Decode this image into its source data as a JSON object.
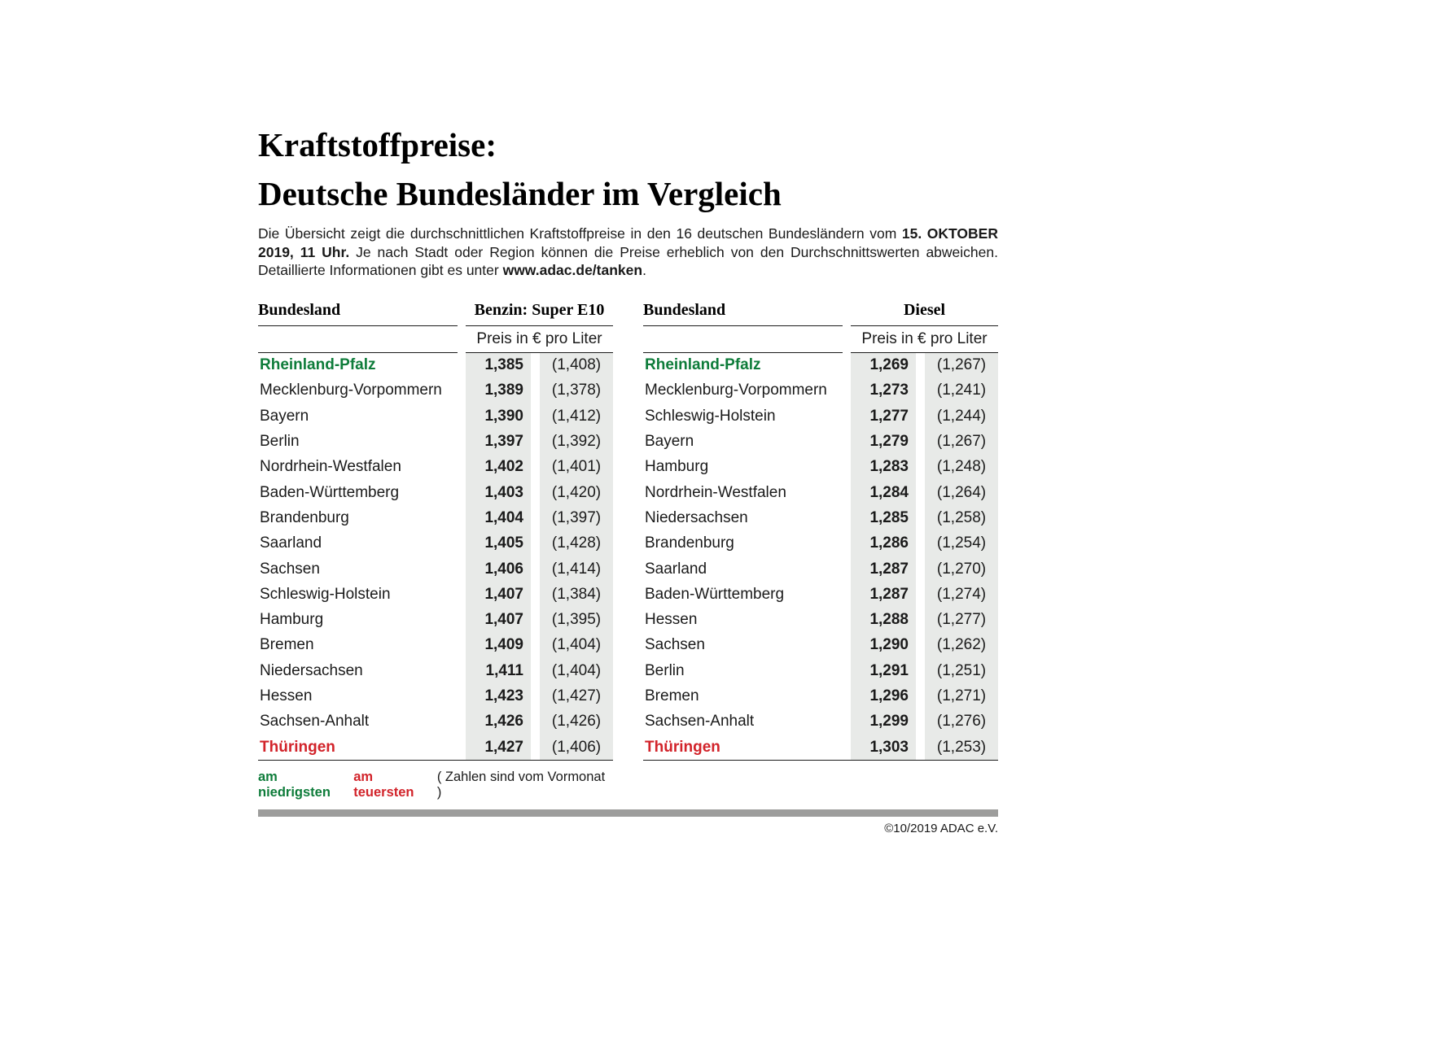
{
  "title": {
    "line1": "Kraftstoffpreise:",
    "line2": "Deutsche Bundesländer im Vergleich"
  },
  "intro": {
    "text1": "Die Übersicht zeigt die durchschnittlichen Kraftstoffpreise in den 16 deutschen Bundesländern vom ",
    "bold1": "15. OKTOBER 2019, 11 Uhr.",
    "text2": " Je nach Stadt oder Region können die Preise erheblich von den Durchschnittswerten abweichen. Detaillierte Informationen gibt es unter ",
    "bold2": "www.adac.de/tanken",
    "text3": "."
  },
  "chart_data": [
    {
      "type": "table",
      "name_header": "Bundesland",
      "fuel_header": "Benzin: Super E10",
      "price_header": "Preis in € pro Liter",
      "rows": [
        {
          "name": "Rheinland-Pfalz",
          "price": "1,385",
          "prev": "(1,408)",
          "highlight": "green"
        },
        {
          "name": "Mecklenburg-Vorpommern",
          "price": "1,389",
          "prev": "(1,378)",
          "highlight": null
        },
        {
          "name": "Bayern",
          "price": "1,390",
          "prev": "(1,412)",
          "highlight": null
        },
        {
          "name": "Berlin",
          "price": "1,397",
          "prev": "(1,392)",
          "highlight": null
        },
        {
          "name": "Nordrhein-Westfalen",
          "price": "1,402",
          "prev": "(1,401)",
          "highlight": null
        },
        {
          "name": "Baden-Württemberg",
          "price": "1,403",
          "prev": "(1,420)",
          "highlight": null
        },
        {
          "name": "Brandenburg",
          "price": "1,404",
          "prev": "(1,397)",
          "highlight": null
        },
        {
          "name": "Saarland",
          "price": "1,405",
          "prev": "(1,428)",
          "highlight": null
        },
        {
          "name": "Sachsen",
          "price": "1,406",
          "prev": "(1,414)",
          "highlight": null
        },
        {
          "name": "Schleswig-Holstein",
          "price": "1,407",
          "prev": "(1,384)",
          "highlight": null
        },
        {
          "name": "Hamburg",
          "price": "1,407",
          "prev": "(1,395)",
          "highlight": null
        },
        {
          "name": "Bremen",
          "price": "1,409",
          "prev": "(1,404)",
          "highlight": null
        },
        {
          "name": "Niedersachsen",
          "price": "1,411",
          "prev": "(1,404)",
          "highlight": null
        },
        {
          "name": "Hessen",
          "price": "1,423",
          "prev": "(1,427)",
          "highlight": null
        },
        {
          "name": "Sachsen-Anhalt",
          "price": "1,426",
          "prev": "(1,426)",
          "highlight": null
        },
        {
          "name": "Thüringen",
          "price": "1,427",
          "prev": "(1,406)",
          "highlight": "red"
        }
      ]
    },
    {
      "type": "table",
      "name_header": "Bundesland",
      "fuel_header": "Diesel",
      "price_header": "Preis in € pro Liter",
      "rows": [
        {
          "name": "Rheinland-Pfalz",
          "price": "1,269",
          "prev": "(1,267)",
          "highlight": "green"
        },
        {
          "name": "Mecklenburg-Vorpommern",
          "price": "1,273",
          "prev": "(1,241)",
          "highlight": null
        },
        {
          "name": "Schleswig-Holstein",
          "price": "1,277",
          "prev": "(1,244)",
          "highlight": null
        },
        {
          "name": "Bayern",
          "price": "1,279",
          "prev": "(1,267)",
          "highlight": null
        },
        {
          "name": "Hamburg",
          "price": "1,283",
          "prev": "(1,248)",
          "highlight": null
        },
        {
          "name": "Nordrhein-Westfalen",
          "price": "1,284",
          "prev": "(1,264)",
          "highlight": null
        },
        {
          "name": "Niedersachsen",
          "price": "1,285",
          "prev": "(1,258)",
          "highlight": null
        },
        {
          "name": "Brandenburg",
          "price": "1,286",
          "prev": "(1,254)",
          "highlight": null
        },
        {
          "name": "Saarland",
          "price": "1,287",
          "prev": "(1,270)",
          "highlight": null
        },
        {
          "name": "Baden-Württemberg",
          "price": "1,287",
          "prev": "(1,274)",
          "highlight": null
        },
        {
          "name": "Hessen",
          "price": "1,288",
          "prev": "(1,277)",
          "highlight": null
        },
        {
          "name": "Sachsen",
          "price": "1,290",
          "prev": "(1,262)",
          "highlight": null
        },
        {
          "name": "Berlin",
          "price": "1,291",
          "prev": "(1,251)",
          "highlight": null
        },
        {
          "name": "Bremen",
          "price": "1,296",
          "prev": "(1,271)",
          "highlight": null
        },
        {
          "name": "Sachsen-Anhalt",
          "price": "1,299",
          "prev": "(1,276)",
          "highlight": null
        },
        {
          "name": "Thüringen",
          "price": "1,303",
          "prev": "(1,253)",
          "highlight": "red"
        }
      ]
    }
  ],
  "legend": {
    "lowest": "am niedrigsten",
    "highest": "am teuersten",
    "note": "( Zahlen sind vom Vormonat )"
  },
  "footer": {
    "copyright": "©10/2019 ADAC e.V."
  },
  "colors": {
    "green": "#0E7C3A",
    "red": "#D2232A",
    "column_bg": "#E8EAE8",
    "bar_gray": "#9D9D9C"
  }
}
